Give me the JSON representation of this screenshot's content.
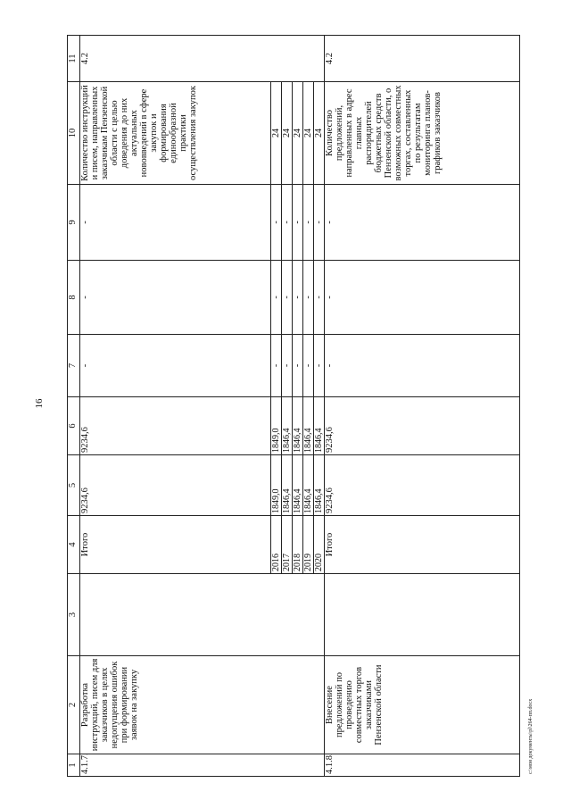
{
  "page_number": "16",
  "footer": "c:\\мои документы\\pl\\264-пп.docx",
  "table": {
    "header": [
      "1",
      "2",
      "3",
      "4",
      "5",
      "6",
      "7",
      "8",
      "9",
      "10",
      "11"
    ],
    "groups": [
      {
        "number": "4.1.7.",
        "name": "Разработка инструкций, писем для заказчиков в целях недопущения ошибок при формировании заявок на закупку",
        "indicator": "4.2",
        "total": [
          "Итого",
          "9234,6",
          "9234,6",
          "-",
          "-",
          "-",
          "Количество инструкций и писем, направленных заказчикам Пензенской области с целью доведения до них актуальных нововведений в сфере закупок и формирования единообразной практики осуществления закупок"
        ],
        "years": [
          [
            "2016",
            "1849,0",
            "1849,0",
            "-",
            "-",
            "-",
            "24"
          ],
          [
            "2017",
            "1846,4",
            "1846,4",
            "-",
            "-",
            "-",
            "24"
          ],
          [
            "2018",
            "1846,4",
            "1846,4",
            "-",
            "-",
            "-",
            "24"
          ],
          [
            "2019",
            "1846,4",
            "1846,4",
            "-",
            "-",
            "-",
            "24"
          ],
          [
            "2020",
            "1846,4",
            "1846,4",
            "-",
            "-",
            "-",
            "24"
          ]
        ]
      },
      {
        "number": "4.1.8.",
        "name": "Внесение предложений по проведению совместных торгов заказчиками Пензенской области",
        "indicator": "4.2",
        "total": [
          "Итого",
          "9234,6",
          "9234,6",
          "-",
          "-",
          "-",
          "Количество предложений, направленных в адрес главных распорядителей бюджетных средств Пензенской области, о возможных совместных торгах, составленных по результатам мониторинга планов-графиков заказчиков"
        ]
      }
    ]
  }
}
